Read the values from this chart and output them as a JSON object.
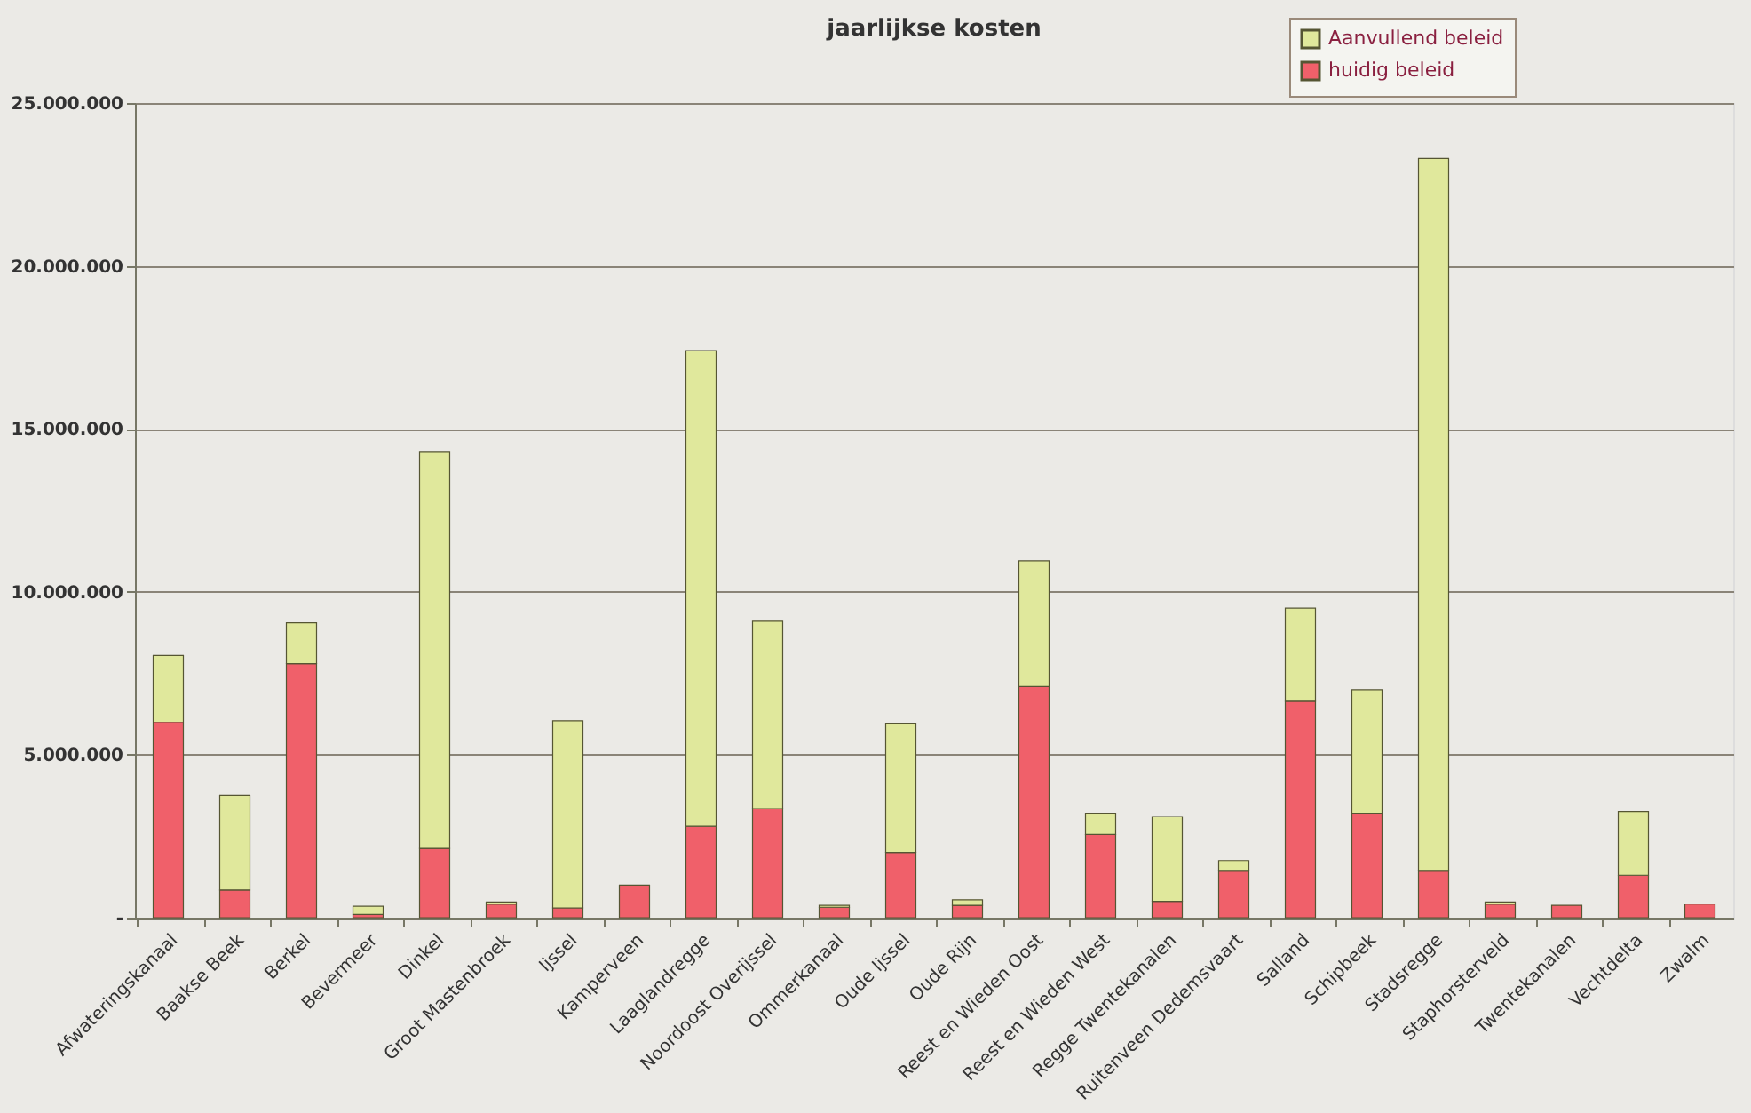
{
  "chart_data": {
    "type": "bar",
    "title": "jaarlijkse kosten",
    "stacked": true,
    "categories": [
      "Afwateringskanaal",
      "Baakse Beek",
      "Berkel",
      "Bevermeer",
      "Dinkel",
      "Groot Mastenbroek",
      "Ijssel",
      "Kamperveen",
      "Laaglandregge",
      "Noordoost Overijssel",
      "Ommerkanaal",
      "Oude Ijssel",
      "Oude Rijn",
      "Reest en Wieden Oost",
      "Reest en Wieden West",
      "Regge Twentekanalen",
      "Ruitenveen Dedemsvaart",
      "Salland",
      "Schipbeek",
      "Stadsregge",
      "Staphorsterveld",
      "Twentekanalen",
      "Vechtdelta",
      "Zwalm"
    ],
    "series": [
      {
        "name": "huidig beleid",
        "color": "#f0606a",
        "values": [
          6000000,
          850000,
          7800000,
          100000,
          2150000,
          420000,
          300000,
          1000000,
          2800000,
          3350000,
          320000,
          2000000,
          380000,
          7100000,
          2550000,
          500000,
          1450000,
          6650000,
          3200000,
          1450000,
          420000,
          380000,
          1300000,
          420000
        ]
      },
      {
        "name": "Aanvullend beleid",
        "color": "#e0e89c",
        "values": [
          2050000,
          2900000,
          1250000,
          250000,
          12150000,
          60000,
          5750000,
          null,
          14600000,
          5750000,
          60000,
          3950000,
          170000,
          3850000,
          650000,
          2600000,
          300000,
          2850000,
          3800000,
          21850000,
          60000,
          null,
          1950000,
          null
        ]
      }
    ],
    "ylim": [
      0,
      25000000
    ],
    "yticks": [
      {
        "value": 0,
        "label": "-"
      },
      {
        "value": 5000000,
        "label": "5.000.000"
      },
      {
        "value": 10000000,
        "label": "10.000.000"
      },
      {
        "value": 15000000,
        "label": "15.000.000"
      },
      {
        "value": 20000000,
        "label": "20.000.000"
      },
      {
        "value": 25000000,
        "label": "25.000.000"
      }
    ],
    "grid": "y",
    "legend": "top right"
  }
}
